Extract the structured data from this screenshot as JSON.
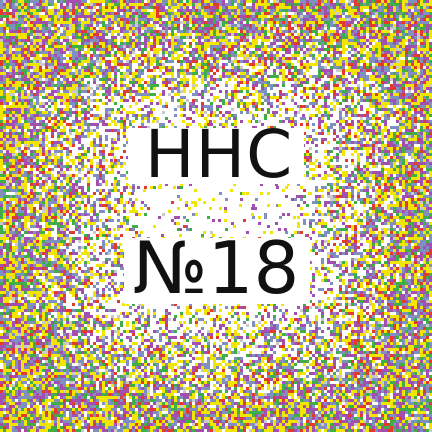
{
  "title": {
    "line1": "HHC",
    "line2": "№18"
  },
  "colors": {
    "background": "#ffffff",
    "text": "#111111",
    "palette": [
      "#f2e600",
      "#7f8fc0",
      "#a24fb0",
      "#3fae49",
      "#e23a2d",
      "#c9c9c9"
    ]
  }
}
